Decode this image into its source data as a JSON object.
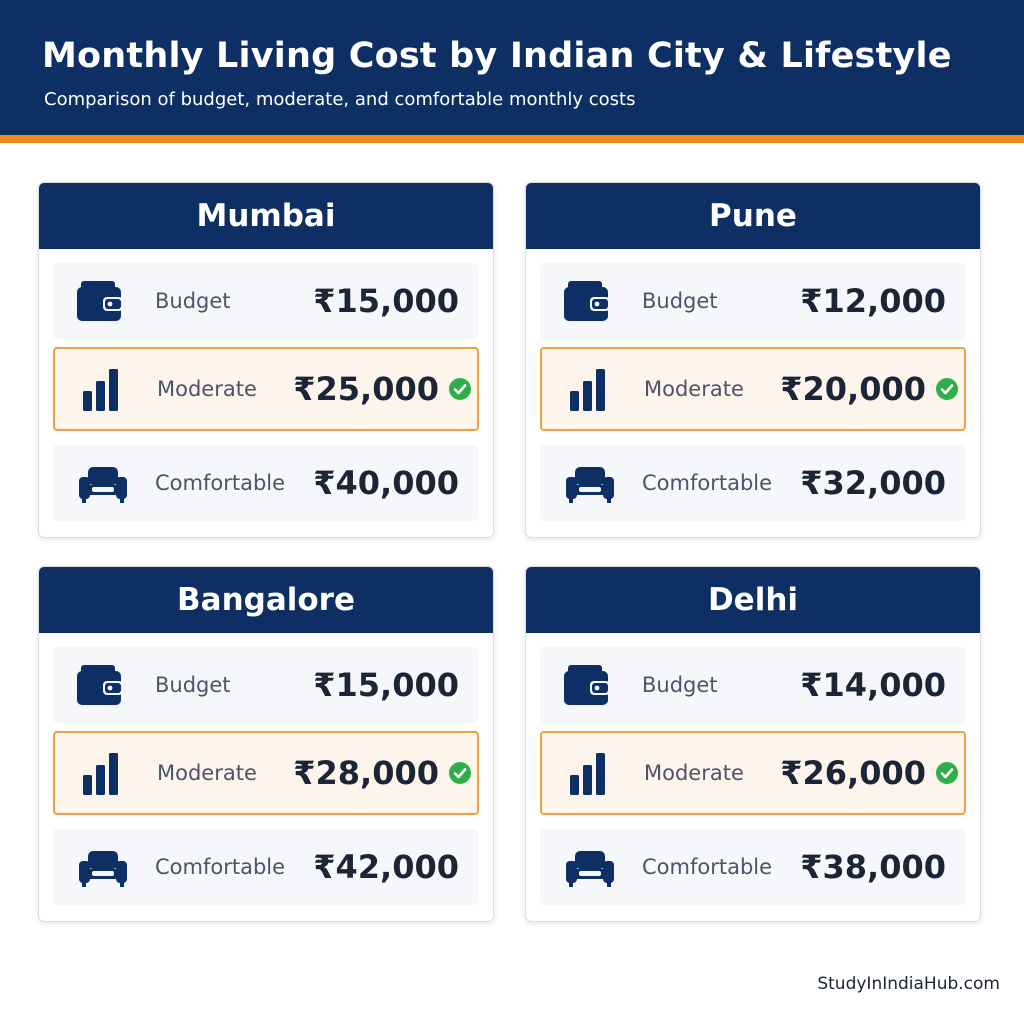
{
  "header": {
    "title": "Monthly Living Cost by Indian City & Lifestyle",
    "subtitle": "Comparison of budget, moderate, and comfortable monthly costs"
  },
  "colors": {
    "navy": "#0d2f63",
    "accent_orange": "#f08a1a",
    "highlight_bg": "#fdf4ec",
    "check_green": "#2fae4a"
  },
  "cities": [
    {
      "name": "Mumbai",
      "tiers": [
        {
          "label": "Budget",
          "value": "₹15,000",
          "icon": "wallet-icon",
          "highlight": false
        },
        {
          "label": "Moderate",
          "value": "₹25,000",
          "icon": "bar-chart-icon",
          "highlight": true
        },
        {
          "label": "Comfortable",
          "value": "₹40,000",
          "icon": "sofa-icon",
          "highlight": false
        }
      ]
    },
    {
      "name": "Pune",
      "tiers": [
        {
          "label": "Budget",
          "value": "₹12,000",
          "icon": "wallet-icon",
          "highlight": false
        },
        {
          "label": "Moderate",
          "value": "₹20,000",
          "icon": "bar-chart-icon",
          "highlight": true
        },
        {
          "label": "Comfortable",
          "value": "₹32,000",
          "icon": "sofa-icon",
          "highlight": false
        }
      ]
    },
    {
      "name": "Bangalore",
      "tiers": [
        {
          "label": "Budget",
          "value": "₹15,000",
          "icon": "wallet-icon",
          "highlight": false
        },
        {
          "label": "Moderate",
          "value": "₹28,000",
          "icon": "bar-chart-icon",
          "highlight": true
        },
        {
          "label": "Comfortable",
          "value": "₹42,000",
          "icon": "sofa-icon",
          "highlight": false
        }
      ]
    },
    {
      "name": "Delhi",
      "tiers": [
        {
          "label": "Budget",
          "value": "₹14,000",
          "icon": "wallet-icon",
          "highlight": false
        },
        {
          "label": "Moderate",
          "value": "₹26,000",
          "icon": "bar-chart-icon",
          "highlight": true
        },
        {
          "label": "Comfortable",
          "value": "₹38,000",
          "icon": "sofa-icon",
          "highlight": false
        }
      ]
    }
  ],
  "footer": {
    "site": "StudyInIndiaHub.com"
  }
}
